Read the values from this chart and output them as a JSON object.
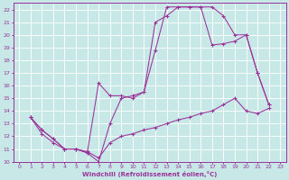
{
  "xlabel": "Windchill (Refroidissement éolien,°C)",
  "background_color": "#c8e8e8",
  "grid_color": "#ffffff",
  "line_color": "#993399",
  "xlim": [
    -0.5,
    23.5
  ],
  "ylim": [
    10,
    22.5
  ],
  "xticks": [
    0,
    1,
    2,
    3,
    4,
    5,
    6,
    7,
    8,
    9,
    10,
    11,
    12,
    13,
    14,
    15,
    16,
    17,
    18,
    19,
    20,
    21,
    22,
    23
  ],
  "yticks": [
    10,
    11,
    12,
    13,
    14,
    15,
    16,
    17,
    18,
    19,
    20,
    21,
    22
  ],
  "line1_x": [
    1,
    2,
    3,
    4,
    5,
    6,
    7,
    8,
    9,
    10,
    11,
    12,
    13,
    14,
    15,
    16,
    17,
    18,
    19,
    20,
    21,
    22
  ],
  "line1_y": [
    13.5,
    12.5,
    11.8,
    11.0,
    11.0,
    10.7,
    10.0,
    13.0,
    15.0,
    15.2,
    15.5,
    21.0,
    21.5,
    22.2,
    22.2,
    22.2,
    22.2,
    21.5,
    20.0,
    20.0,
    17.0,
    14.5
  ],
  "line2_x": [
    1,
    2,
    3,
    4,
    5,
    6,
    7,
    8,
    9,
    10,
    11,
    12,
    13,
    14,
    15,
    16,
    17,
    18,
    19,
    20,
    21,
    22
  ],
  "line2_y": [
    13.5,
    12.5,
    11.8,
    11.0,
    11.0,
    10.7,
    16.2,
    15.2,
    15.2,
    15.0,
    15.5,
    18.8,
    22.2,
    22.2,
    22.2,
    22.2,
    19.2,
    19.3,
    19.5,
    20.0,
    17.0,
    14.5
  ],
  "line3_x": [
    1,
    2,
    3,
    4,
    5,
    6,
    7,
    8,
    9,
    10,
    11,
    12,
    13,
    14,
    15,
    16,
    17,
    18,
    19,
    20,
    21,
    22
  ],
  "line3_y": [
    13.5,
    12.2,
    11.5,
    11.0,
    11.0,
    10.8,
    10.3,
    11.5,
    12.0,
    12.2,
    12.5,
    12.7,
    13.0,
    13.3,
    13.5,
    13.8,
    14.0,
    14.5,
    15.0,
    14.0,
    13.8,
    14.2
  ]
}
